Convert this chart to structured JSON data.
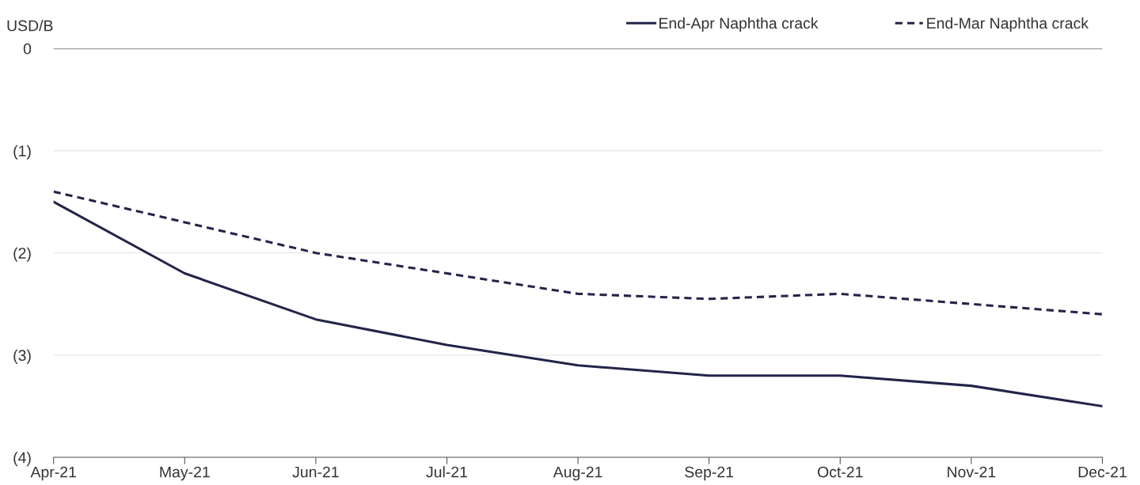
{
  "chart_data": {
    "type": "line",
    "ylabel": "USD/B",
    "categories": [
      "Apr-21",
      "May-21",
      "Jun-21",
      "Jul-21",
      "Aug-21",
      "Sep-21",
      "Oct-21",
      "Nov-21",
      "Dec-21"
    ],
    "series": [
      {
        "name": "End-Apr Naphtha crack",
        "color": "#23244a",
        "line_style": "solid",
        "values": [
          -1.5,
          -2.2,
          -2.65,
          -2.9,
          -3.1,
          -3.2,
          -3.2,
          -3.3,
          -3.5
        ]
      },
      {
        "name": "End-Mar Naphtha crack",
        "color": "#23244a",
        "line_style": "dashed",
        "values": [
          -1.4,
          -1.7,
          -2.0,
          -2.2,
          -2.4,
          -2.45,
          -2.4,
          -2.5,
          -2.6
        ]
      }
    ],
    "ylim": [
      -4,
      0
    ],
    "yticks": [
      0,
      {
        "value": -1,
        "label": "(1)"
      },
      {
        "value": -2,
        "label": "(2)"
      },
      {
        "value": -3,
        "label": "(3)"
      },
      {
        "value": -4,
        "label": "(4)"
      }
    ],
    "ref_lines": [
      {
        "axis": "y",
        "value": 0,
        "label": null,
        "color": "#8c8c8c"
      }
    ],
    "grid": "y",
    "legend": "top right",
    "marker": "none"
  }
}
